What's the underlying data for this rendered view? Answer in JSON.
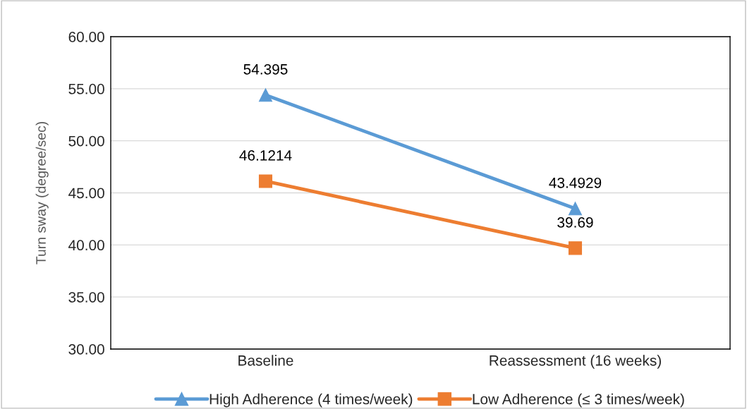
{
  "chart_data": {
    "type": "line",
    "ylabel": "Turn sway (degree/sec)",
    "categories": [
      "Baseline",
      "Reassessment (16 weeks)"
    ],
    "series": [
      {
        "name": "High Adherence (4 times/week)",
        "color": "#5b9bd5",
        "marker": "triangle",
        "values": [
          54.395,
          43.4929
        ]
      },
      {
        "name": "Low Adherence (≤ 3 times/week)",
        "color": "#ed7d31",
        "marker": "square",
        "values": [
          46.1214,
          39.69
        ]
      }
    ],
    "ylim": [
      30,
      60
    ],
    "yticks": [
      {
        "value": 30,
        "label": "30.00"
      },
      {
        "value": 35,
        "label": "35.00"
      },
      {
        "value": 40,
        "label": "40.00"
      },
      {
        "value": 45,
        "label": "45.00"
      },
      {
        "value": 50,
        "label": "50.00"
      },
      {
        "value": 55,
        "label": "55.00"
      },
      {
        "value": 60,
        "label": "60.00"
      }
    ],
    "grid": "y",
    "legend": "bottom",
    "data_labels": true,
    "line_style": "solid"
  }
}
